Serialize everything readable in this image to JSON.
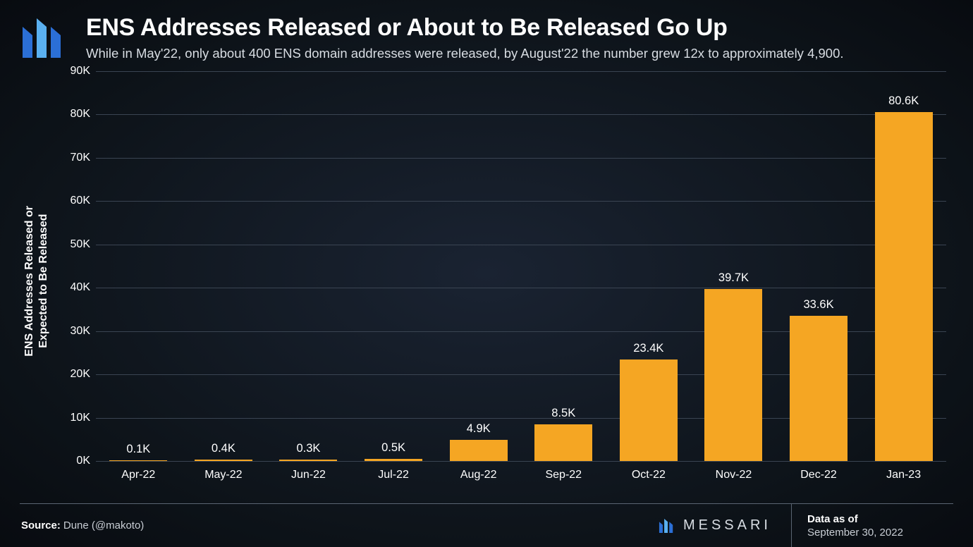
{
  "header": {
    "title": "ENS Addresses Released or About to Be Released Go Up",
    "subtitle": "While in May'22, only about 400 ENS domain addresses were released, by August'22 the number grew 12x to approximately 4,900."
  },
  "chart": {
    "type": "bar",
    "y_axis_label_line1": "ENS Addresses Released or",
    "y_axis_label_line2": "Expected to Be Released",
    "ylim": [
      0,
      90
    ],
    "ytick_step": 10,
    "yticks": [
      "0K",
      "10K",
      "20K",
      "30K",
      "40K",
      "50K",
      "60K",
      "70K",
      "80K",
      "90K"
    ],
    "categories": [
      "Apr-22",
      "May-22",
      "Jun-22",
      "Jul-22",
      "Aug-22",
      "Sep-22",
      "Oct-22",
      "Nov-22",
      "Dec-22",
      "Jan-23"
    ],
    "values": [
      0.1,
      0.4,
      0.3,
      0.5,
      4.9,
      8.5,
      23.4,
      39.7,
      33.6,
      80.6
    ],
    "value_labels": [
      "0.1K",
      "0.4K",
      "0.3K",
      "0.5K",
      "4.9K",
      "8.5K",
      "23.4K",
      "39.7K",
      "33.6K",
      "80.6K"
    ],
    "bar_color": "#f5a623",
    "grid_color": "#3a4452",
    "background_color": "#0d1319",
    "text_color": "#ffffff",
    "bar_width": 0.68,
    "label_fontsize": 16,
    "title_fontsize": 34
  },
  "footer": {
    "source_label": "Source:",
    "source_value": "Dune (@makoto)",
    "brand": "MESSARI",
    "data_as_of_label": "Data as of",
    "data_as_of_value": "September 30, 2022"
  },
  "logo": {
    "bar_colors": [
      "#2b6fd6",
      "#4a9de8",
      "#2b6fd6"
    ]
  }
}
